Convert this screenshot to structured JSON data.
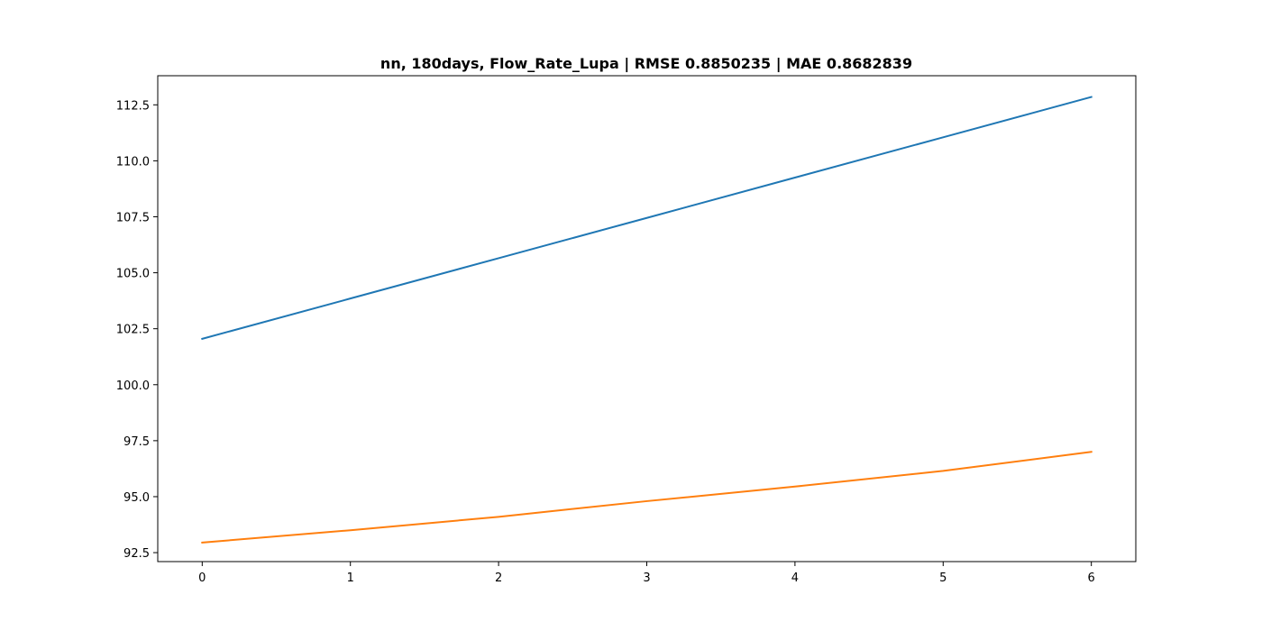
{
  "chart_data": {
    "type": "line",
    "title": "nn, 180days, Flow_Rate_Lupa | RMSE 0.8850235 | MAE 0.8682839",
    "xlabel": "",
    "ylabel": "",
    "x": [
      0,
      1,
      2,
      3,
      4,
      5,
      6
    ],
    "xlim": [
      -0.3,
      6.3
    ],
    "ylim": [
      92.1,
      113.8
    ],
    "grid": false,
    "xticks": [
      0,
      1,
      2,
      3,
      4,
      5,
      6
    ],
    "xtick_labels": [
      "0",
      "1",
      "2",
      "3",
      "4",
      "5",
      "6"
    ],
    "yticks": [
      92.5,
      95.0,
      97.5,
      100.0,
      102.5,
      105.0,
      107.5,
      110.0,
      112.5
    ],
    "ytick_labels": [
      "92.5",
      "95.0",
      "97.5",
      "100.0",
      "102.5",
      "105.0",
      "107.5",
      "110.0",
      "112.5"
    ],
    "series": [
      {
        "name": "series-1",
        "color": "#1f77b4",
        "values": [
          102.05,
          103.85,
          105.65,
          107.45,
          109.25,
          111.05,
          112.85
        ]
      },
      {
        "name": "series-2",
        "color": "#ff7f0e",
        "values": [
          92.95,
          93.5,
          94.1,
          94.8,
          95.45,
          96.15,
          97.0
        ]
      }
    ]
  }
}
